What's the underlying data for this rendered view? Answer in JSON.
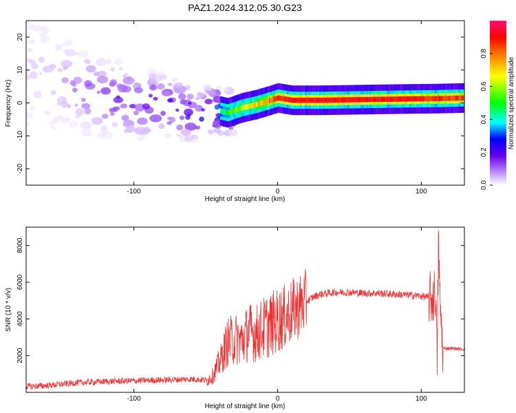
{
  "title": "PAZ1.2024.312.05.30.G23",
  "colors": {
    "snr_line": "#ee3333",
    "axis": "#000000"
  },
  "chart_data": [
    {
      "type": "heatmap",
      "xlabel": "Height of straight line (km)",
      "ylabel": "Frequency (Hz)",
      "xlim": [
        -175,
        130
      ],
      "ylim": [
        -25,
        25
      ],
      "x_ticks": [
        -100,
        0,
        100
      ],
      "x_tick_labels": [
        "-100",
        "0",
        "100"
      ],
      "y_ticks": [
        -20,
        -10,
        0,
        10,
        20
      ],
      "y_tick_labels": [
        "-20",
        "-10",
        "0",
        "10",
        "20"
      ],
      "colormap": [
        "#ffffff",
        "#bb88ff",
        "#6600ee",
        "#0000ff",
        "#00ffff",
        "#00ff00",
        "#ffff00",
        "#ff8800",
        "#ff0000",
        "#ff1177"
      ],
      "colorbar": {
        "label": "Normalized spectral amplitude",
        "range": [
          0,
          1
        ],
        "ticks": [
          0.0,
          0.2,
          0.4,
          0.6,
          0.8
        ],
        "tick_labels": [
          "0.0",
          "0.2",
          "0.4",
          "0.6",
          "0.8"
        ]
      },
      "ridge": {
        "x": [
          -175,
          -150,
          -125,
          -100,
          -75,
          -55,
          -45,
          -35,
          -25,
          -15,
          -5,
          0,
          10,
          30,
          60,
          90,
          110,
          130
        ],
        "freq": [
          9,
          6,
          2.5,
          0,
          -1,
          -4,
          -2,
          -3,
          -1.5,
          -0.5,
          0.8,
          1.5,
          0.8,
          0.8,
          1.0,
          1.2,
          1.3,
          1.5
        ],
        "amplitude": [
          0.05,
          0.1,
          0.2,
          0.25,
          0.3,
          0.3,
          0.45,
          0.55,
          0.65,
          0.7,
          0.8,
          0.85,
          0.9,
          0.92,
          0.9,
          0.9,
          0.85,
          0.85
        ]
      }
    },
    {
      "type": "line",
      "xlabel": "Height of straight line (km)",
      "ylabel": "SNR (10 * v/v)",
      "xlim": [
        -175,
        130
      ],
      "ylim": [
        0,
        9000
      ],
      "x_ticks": [
        -100,
        0,
        100
      ],
      "x_tick_labels": [
        "-100",
        "0",
        "100"
      ],
      "y_ticks": [
        2000,
        4000,
        6000,
        8000
      ],
      "y_tick_labels": [
        "2000",
        "4000",
        "6000",
        "8000"
      ],
      "series": [
        {
          "x": [
            -175,
            -160,
            -140,
            -120,
            -100,
            -80,
            -60,
            -50,
            -45,
            -40,
            -35,
            -30,
            -25,
            -20,
            -15,
            -10,
            -5,
            0,
            5,
            10,
            15,
            20,
            25,
            30,
            35,
            40,
            50,
            60,
            70,
            80,
            90,
            100,
            105,
            108,
            110,
            111,
            112,
            113,
            115,
            120,
            130
          ],
          "y": [
            250,
            300,
            450,
            520,
            560,
            600,
            650,
            600,
            900,
            1700,
            2700,
            2900,
            2800,
            3300,
            3200,
            3500,
            3700,
            3900,
            4100,
            4400,
            4700,
            4950,
            5200,
            5350,
            5400,
            5450,
            5450,
            5400,
            5400,
            5350,
            5300,
            5250,
            5150,
            5100,
            5500,
            1500,
            8500,
            4800,
            2400,
            2400,
            2350
          ]
        }
      ]
    }
  ]
}
